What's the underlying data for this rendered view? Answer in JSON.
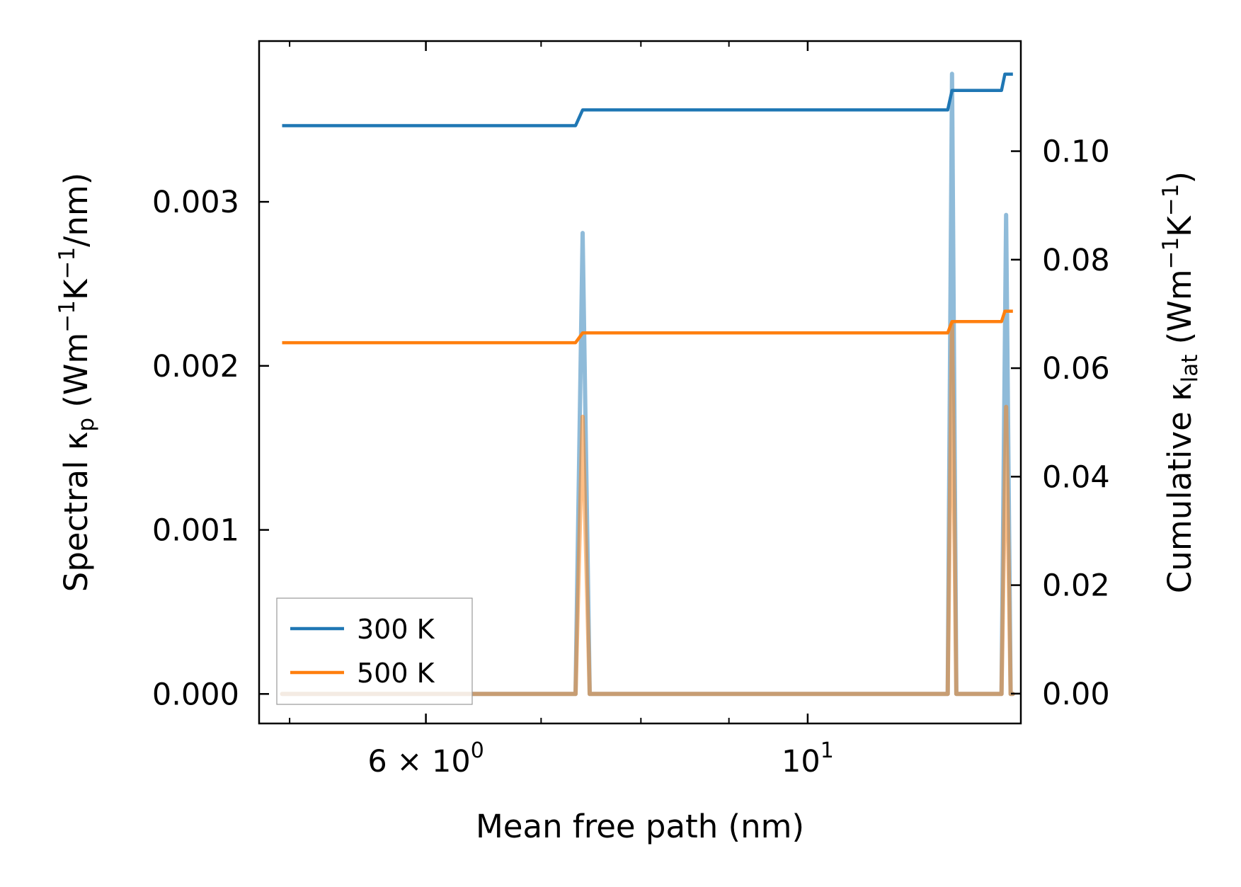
{
  "chart_data": {
    "type": "line",
    "xlabel": "Mean free path (nm)",
    "ylabel_left": {
      "prefix": "Spectral κ",
      "sub": "p",
      "units_open": " (Wm",
      "sup1": "−1",
      "mid": "K",
      "sup2": "−1",
      "units_close": "/nm)"
    },
    "ylabel_right": {
      "prefix": "Cumulative κ",
      "sub": "lat",
      "units_open": " (Wm",
      "sup1": "−1",
      "mid": "K",
      "sup2": "−1",
      "units_close": ")"
    },
    "x_scale": "log",
    "xlim": [
      4.8,
      13.3
    ],
    "ylim_left": [
      -0.00018,
      0.00398
    ],
    "ylim_right": [
      -0.0055,
      0.1203
    ],
    "x_ticks": [
      {
        "value": 6,
        "base": "6",
        "mid": " × 10",
        "exp": "0"
      },
      {
        "value": 10,
        "base": "",
        "mid": "10",
        "exp": "1"
      }
    ],
    "x_minor_ticks": [
      5,
      7,
      8,
      9
    ],
    "y_left_ticks": [
      {
        "value": 0.0,
        "label": "0.000"
      },
      {
        "value": 0.001,
        "label": "0.001"
      },
      {
        "value": 0.002,
        "label": "0.002"
      },
      {
        "value": 0.003,
        "label": "0.003"
      }
    ],
    "y_right_ticks": [
      {
        "value": 0.0,
        "label": "0.00"
      },
      {
        "value": 0.02,
        "label": "0.02"
      },
      {
        "value": 0.04,
        "label": "0.04"
      },
      {
        "value": 0.06,
        "label": "0.06"
      },
      {
        "value": 0.08,
        "label": "0.08"
      },
      {
        "value": 0.1,
        "label": "0.10"
      }
    ],
    "legend_position": "lower-left",
    "series": [
      {
        "name": "300 K",
        "color": "#1f77b4",
        "cumulative": {
          "x": [
            4.95,
            7.33,
            7.4,
            12.06,
            12.13,
            12.96,
            13.02,
            13.16
          ],
          "y": [
            0.1047,
            0.1047,
            0.1076,
            0.1076,
            0.1112,
            0.1112,
            0.1142,
            0.1142
          ]
        },
        "spectral": {
          "x": [
            4.95,
            7.33,
            7.4,
            7.47,
            12.06,
            12.13,
            12.2,
            12.96,
            13.04,
            13.12,
            13.16
          ],
          "y": [
            0,
            0,
            0.00281,
            0,
            0,
            0.00378,
            0,
            0,
            0.00292,
            0,
            0
          ]
        }
      },
      {
        "name": "500 K",
        "color": "#ff7f0e",
        "cumulative": {
          "x": [
            4.95,
            7.33,
            7.4,
            12.06,
            12.13,
            12.96,
            13.02,
            13.16
          ],
          "y": [
            0.0647,
            0.0647,
            0.0665,
            0.0665,
            0.0686,
            0.0686,
            0.0705,
            0.0705
          ]
        },
        "spectral": {
          "x": [
            4.95,
            7.33,
            7.4,
            7.47,
            12.06,
            12.13,
            12.2,
            12.96,
            13.04,
            13.12,
            13.16
          ],
          "y": [
            0,
            0,
            0.00169,
            0,
            0,
            0.00226,
            0,
            0,
            0.00175,
            0,
            0
          ]
        }
      }
    ]
  }
}
